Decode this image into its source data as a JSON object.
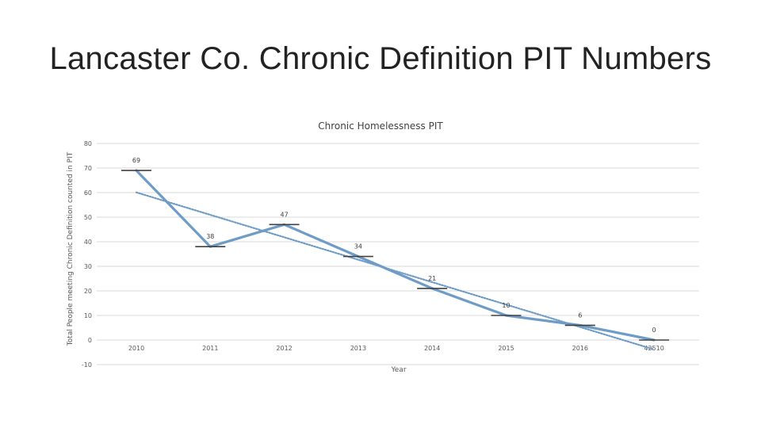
{
  "slide": {
    "title": "Lancaster Co. Chronic Definition PIT Numbers"
  },
  "chart_data": {
    "type": "line",
    "title": "Chronic Homelessness PIT",
    "xlabel": "Year",
    "ylabel": "Total People meeting Chronic Definition counted in PIT",
    "categories": [
      "2010",
      "2011",
      "2012",
      "2013",
      "2014",
      "2015",
      "2016",
      "42510"
    ],
    "series": [
      {
        "values": [
          69,
          38,
          47,
          34,
          21,
          10,
          6,
          0
        ]
      }
    ],
    "trendline": {
      "type": "linear",
      "style": "dotted"
    },
    "ylim": [
      -10,
      80
    ],
    "yticks": [
      -10,
      0,
      10,
      20,
      30,
      40,
      50,
      60,
      70,
      80
    ],
    "grid": true,
    "colors": {
      "line": "#6f9cc6",
      "trend": "#6f9cc6",
      "marker": "#404040",
      "grid": "#d9d9d9"
    }
  }
}
